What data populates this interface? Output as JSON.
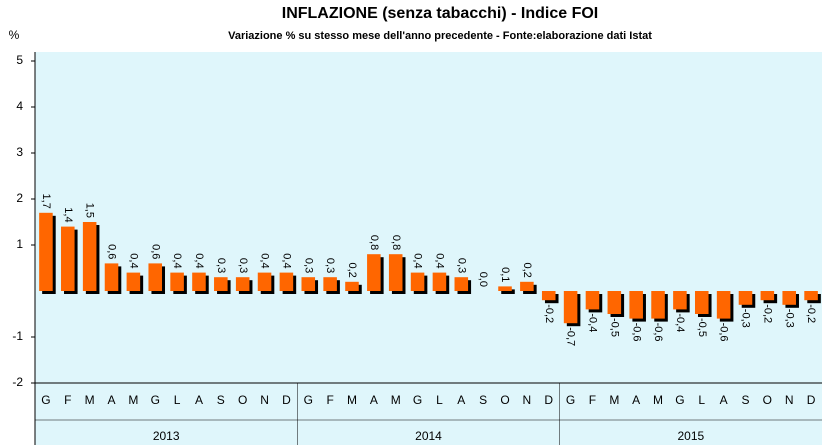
{
  "chart_data": {
    "type": "bar",
    "title": "INFLAZIONE (senza tabacchi) - Indice FOI",
    "subtitle": "Variazione % su stesso mese dell'anno precedente - Fonte:elaborazione dati Istat",
    "y_label": "%",
    "categories": [
      "G",
      "F",
      "M",
      "A",
      "M",
      "G",
      "L",
      "A",
      "S",
      "O",
      "N",
      "D",
      "G",
      "F",
      "M",
      "A",
      "M",
      "G",
      "L",
      "A",
      "S",
      "O",
      "N",
      "D",
      "G",
      "F",
      "M",
      "A",
      "M",
      "G",
      "L",
      "A",
      "S",
      "O",
      "N",
      "D"
    ],
    "year_labels": [
      "2013",
      "2014",
      "2015"
    ],
    "values": [
      1.7,
      1.4,
      1.5,
      0.6,
      0.4,
      0.6,
      0.4,
      0.4,
      0.3,
      0.3,
      0.4,
      0.4,
      0.3,
      0.3,
      0.2,
      0.8,
      0.8,
      0.4,
      0.4,
      0.3,
      0.0,
      0.1,
      0.2,
      -0.2,
      -0.7,
      -0.4,
      -0.5,
      -0.6,
      -0.6,
      -0.4,
      -0.5,
      -0.6,
      -0.3,
      -0.2,
      -0.3,
      -0.2
    ],
    "value_labels": [
      "1,7",
      "1,4",
      "1,5",
      "0,6",
      "0,4",
      "0,6",
      "0,4",
      "0,4",
      "0,3",
      "0,3",
      "0,4",
      "0,4",
      "0,3",
      "0,3",
      "0,2",
      "0,8",
      "0,8",
      "0,4",
      "0,4",
      "0,3",
      "0,0",
      "0,1",
      "0,2",
      "-0,2",
      "-0,7",
      "-0,4",
      "-0,5",
      "-0,6",
      "-0,6",
      "-0,4",
      "-0,5",
      "-0,6",
      "-0,3",
      "-0,2",
      "-0,3",
      "-0,2"
    ],
    "color": "#ff6600",
    "ylim": [
      -2,
      5
    ],
    "yticks": [
      -2,
      -1,
      1,
      2,
      3,
      4,
      5
    ]
  }
}
